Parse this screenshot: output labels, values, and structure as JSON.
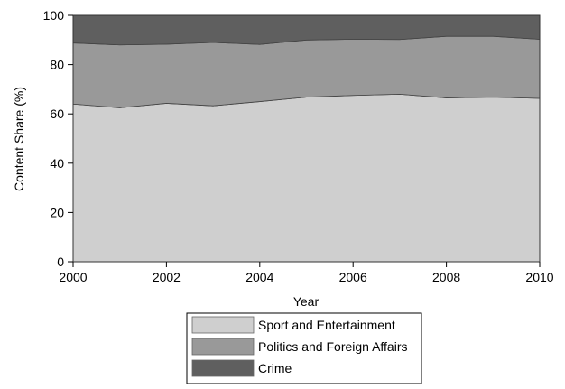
{
  "chart_data": {
    "type": "area",
    "stacked": true,
    "title": "",
    "xlabel": "Year",
    "ylabel": "Content Share (%)",
    "xlim": [
      2000,
      2010
    ],
    "ylim": [
      0,
      100
    ],
    "x_ticks": [
      2000,
      2002,
      2004,
      2006,
      2008,
      2010
    ],
    "y_ticks": [
      0,
      20,
      40,
      60,
      80,
      100
    ],
    "grid": false,
    "legend_position": "bottom",
    "x": [
      2000,
      2001,
      2002,
      2003,
      2004,
      2005,
      2006,
      2007,
      2008,
      2009,
      2010
    ],
    "series": [
      {
        "name": "Sport and Entertainment",
        "color": "#cfcfcf",
        "values": [
          64.0,
          62.5,
          64.3,
          63.3,
          65.0,
          66.8,
          67.5,
          68.0,
          66.5,
          66.8,
          66.3
        ]
      },
      {
        "name": "Politics and Foreign Affairs",
        "color": "#999999",
        "values": [
          24.8,
          25.5,
          24.0,
          25.7,
          23.2,
          23.2,
          22.8,
          22.2,
          25.0,
          24.7,
          24.0
        ]
      },
      {
        "name": "Crime",
        "color": "#5f5f5f",
        "values": [
          11.2,
          12.0,
          11.7,
          11.0,
          11.8,
          10.0,
          9.7,
          9.8,
          8.5,
          8.5,
          9.7
        ]
      }
    ]
  }
}
